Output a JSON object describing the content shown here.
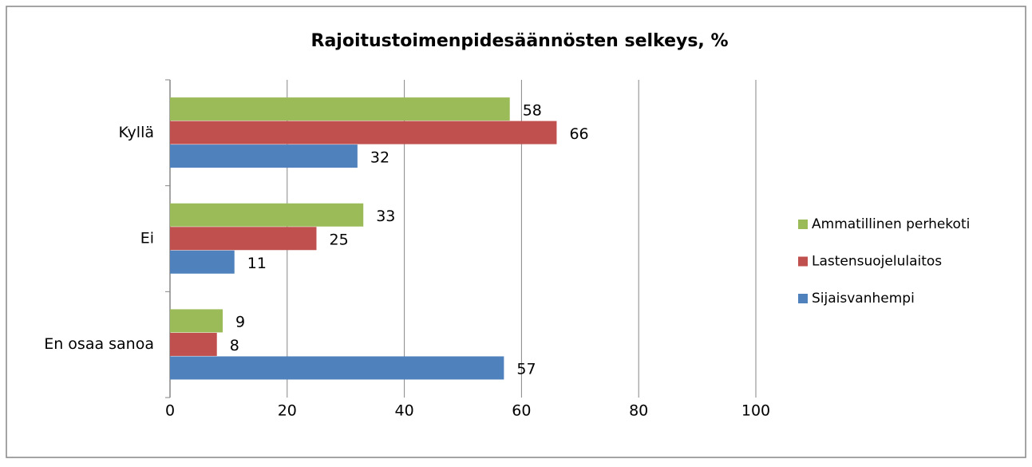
{
  "chart_data": {
    "type": "bar",
    "orientation": "horizontal",
    "title": "Rajoitustoimenpidesäännösten selkeys, %",
    "categories": [
      "Kyllä",
      "Ei",
      "En osaa sanoa"
    ],
    "series": [
      {
        "name": "Ammatillinen perhekoti",
        "color": "#9bbb59",
        "values": [
          58,
          33,
          9
        ]
      },
      {
        "name": "Lastensuojelulaitos",
        "color": "#c0504d",
        "values": [
          66,
          25,
          8
        ]
      },
      {
        "name": "Sijaisvanhempi",
        "color": "#4f81bd",
        "values": [
          32,
          11,
          57
        ]
      }
    ],
    "xlim": [
      0,
      100
    ],
    "xticks": [
      0,
      20,
      40,
      60,
      80,
      100
    ],
    "grid": true,
    "legend": "right"
  }
}
